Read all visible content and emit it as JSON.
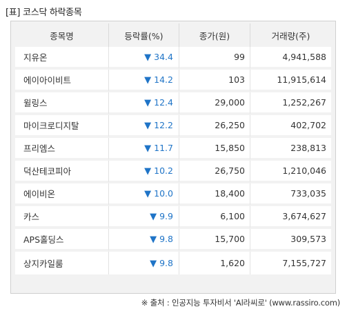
{
  "title": "[표] 코스닥 하락종목",
  "table": {
    "headers": [
      "종목명",
      "등락률(%)",
      "종가(원)",
      "거래량(주)"
    ],
    "rows": [
      {
        "name": "지유온",
        "arrow": "▼",
        "change": "34.4",
        "close": "99",
        "volume": "4,941,588"
      },
      {
        "name": "에이아이비트",
        "arrow": "▼",
        "change": "14.2",
        "close": "103",
        "volume": "11,915,614"
      },
      {
        "name": "윌링스",
        "arrow": "▼",
        "change": "12.4",
        "close": "29,000",
        "volume": "1,252,267"
      },
      {
        "name": "마이크로디지탈",
        "arrow": "▼",
        "change": "12.2",
        "close": "26,250",
        "volume": "402,702"
      },
      {
        "name": "프리엠스",
        "arrow": "▼",
        "change": "11.7",
        "close": "15,850",
        "volume": "238,813"
      },
      {
        "name": "덕산테코피아",
        "arrow": "▼",
        "change": "10.2",
        "close": "26,750",
        "volume": "1,210,046"
      },
      {
        "name": "에이비온",
        "arrow": "▼",
        "change": "10.0",
        "close": "18,400",
        "volume": "733,035"
      },
      {
        "name": "카스",
        "arrow": "▼",
        "change": "9.9",
        "close": "6,100",
        "volume": "3,674,627"
      },
      {
        "name": "APS홀딩스",
        "arrow": "▼",
        "change": "9.8",
        "close": "15,700",
        "volume": "309,573"
      },
      {
        "name": "상지카일룸",
        "arrow": "▼",
        "change": "9.8",
        "close": "1,620",
        "volume": "7,155,727"
      }
    ]
  },
  "footer": "※ 출처 : 인공지능 투자비서 'Al라씨로' (www.rassiro.com)",
  "colors": {
    "down": "#1f74c7",
    "header_bg": "#f2f2f2",
    "border": "#cfcfcf"
  }
}
